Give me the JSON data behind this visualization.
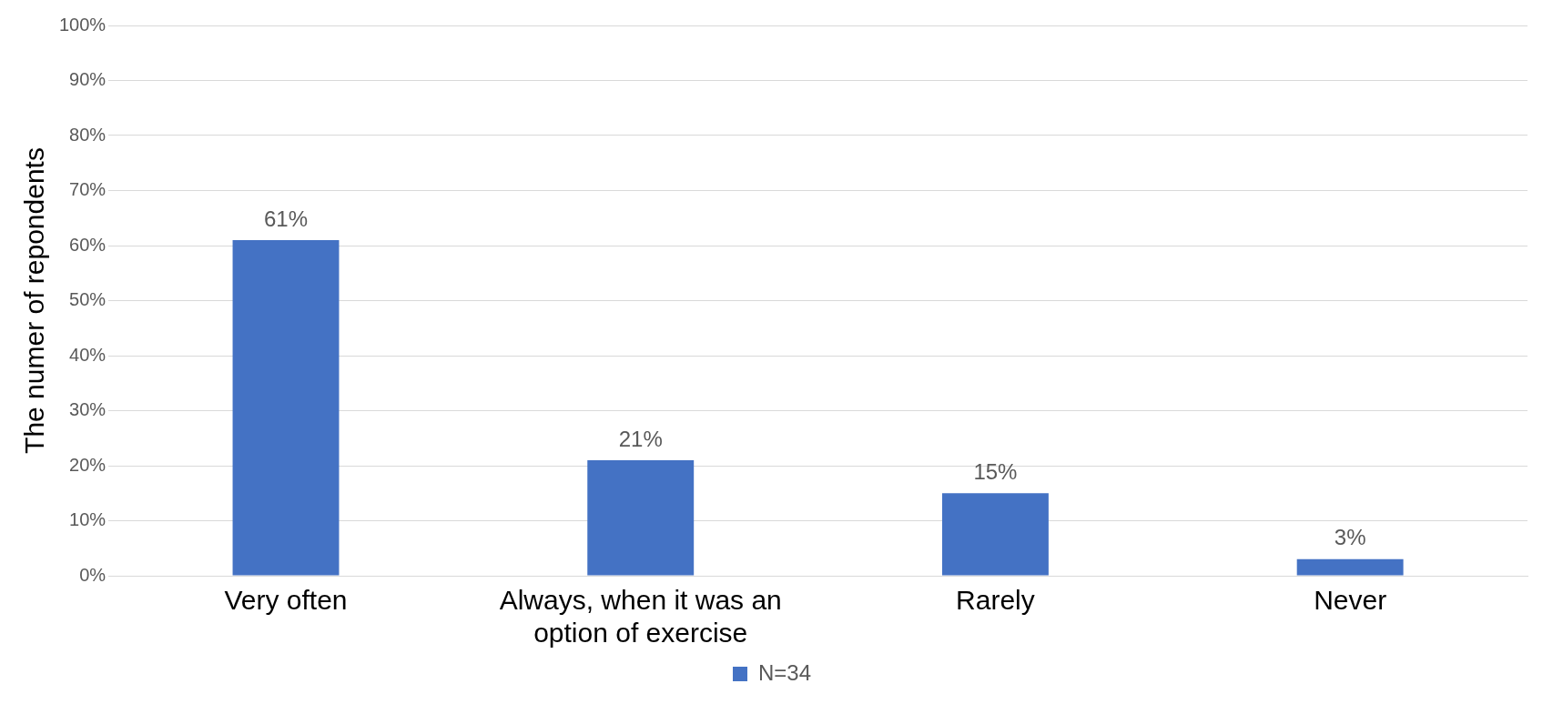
{
  "chart_data": {
    "type": "bar",
    "ylabel": "The numer of repondents",
    "categories": [
      "Very often",
      "Always, when it was an option of exercise",
      "Rarely",
      "Never"
    ],
    "series": [
      {
        "name": "N=34",
        "color": "#4472c4",
        "values": [
          61,
          21,
          15,
          3
        ],
        "value_labels": [
          "61%",
          "21%",
          "15%",
          "3%"
        ]
      }
    ],
    "ylim": [
      0,
      100
    ],
    "yticks": [
      {
        "value": 0,
        "label": "0%"
      },
      {
        "value": 10,
        "label": "10%"
      },
      {
        "value": 20,
        "label": "20%"
      },
      {
        "value": 30,
        "label": "30%"
      },
      {
        "value": 40,
        "label": "40%"
      },
      {
        "value": 50,
        "label": "50%"
      },
      {
        "value": 60,
        "label": "60%"
      },
      {
        "value": 70,
        "label": "70%"
      },
      {
        "value": 80,
        "label": "80%"
      },
      {
        "value": 90,
        "label": "90%"
      },
      {
        "value": 100,
        "label": "100%"
      }
    ],
    "grid": "y",
    "legend": "bottom"
  }
}
